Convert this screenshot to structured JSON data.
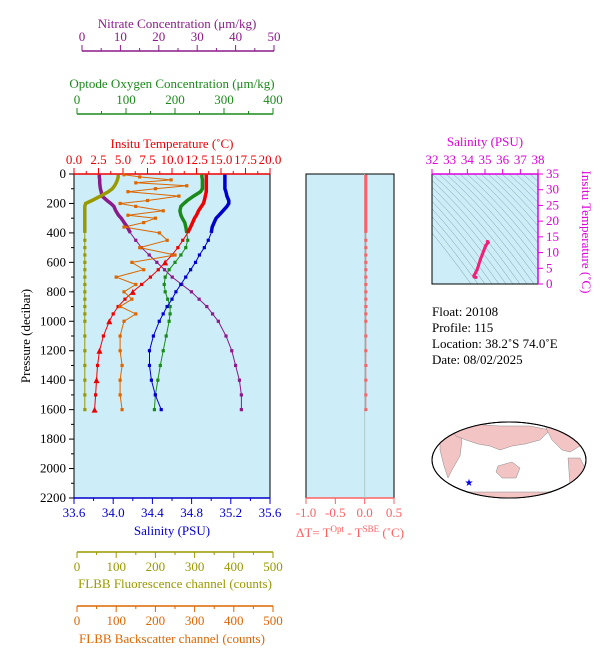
{
  "colors": {
    "nitrate": "#8b1a8b",
    "oxygen": "#1a8b1a",
    "temperature": "#ee0000",
    "salinity": "#0000cc",
    "fluorescence": "#999900",
    "backscatter": "#dd6600",
    "delta_t": "#ff6060",
    "ts_axis": "#dd00dd",
    "panel_bg": "#cdeef8",
    "land": "#f3c4c4",
    "ocean": "#ffffff"
  },
  "axes": {
    "nitrate": {
      "label": "Nitrate Concentration (μm/kg)",
      "ticks": [
        "0",
        "10",
        "20",
        "30",
        "40",
        "50"
      ]
    },
    "oxygen": {
      "label": "Optode Oxygen Concentration (μm/kg)",
      "ticks": [
        "0",
        "100",
        "200",
        "300",
        "400"
      ]
    },
    "temperature": {
      "label": "Insitu Temperature (˚C)",
      "ticks": [
        "0.0",
        "2.5",
        "5.0",
        "7.5",
        "10.0",
        "12.5",
        "15.0",
        "17.5",
        "20.0"
      ]
    },
    "pressure": {
      "label": "Pressure (decibar)",
      "ticks": [
        "0",
        "200",
        "400",
        "600",
        "800",
        "1000",
        "1200",
        "1400",
        "1600",
        "1800",
        "2000",
        "2200"
      ]
    },
    "salinity": {
      "label": "Salinity (PSU)",
      "ticks": [
        "33.6",
        "34.0",
        "34.4",
        "34.8",
        "35.2",
        "35.6"
      ]
    },
    "delta_t": {
      "label": "ΔT= T",
      "sup1": "Opt",
      "mid": " - T",
      "sup2": "SBE",
      "tail": " (˚C)",
      "ticks": [
        "-1.0",
        "-0.5",
        "0.0",
        "0.5"
      ]
    },
    "fluorescence": {
      "label": "FLBB Fluorescence channel (counts)",
      "ticks": [
        "0",
        "100",
        "200",
        "300",
        "400",
        "500"
      ]
    },
    "backscatter": {
      "label": "FLBB Backscatter channel (counts)",
      "ticks": [
        "0",
        "100",
        "200",
        "300",
        "400",
        "500"
      ]
    },
    "ts_salinity": {
      "label": "Salinity (PSU)",
      "ticks": [
        "32",
        "33",
        "34",
        "35",
        "36",
        "37",
        "38"
      ]
    },
    "ts_temperature": {
      "label": "Insitu Temperature (˚C)",
      "ticks": [
        "0",
        "5",
        "10",
        "15",
        "20",
        "25",
        "30",
        "35"
      ]
    }
  },
  "info": {
    "float": "Float:  20108",
    "profile": "Profile:  115",
    "location": "Location:  38.2˚S  74.0˚E",
    "date": "Date:  08/02/2025"
  },
  "chart_data": [
    {
      "type": "line",
      "panel": "profiles",
      "ylim": [
        2200,
        0
      ],
      "series": [
        {
          "name": "Nitrate Concentration",
          "x_axis": "nitrate",
          "xlim": [
            0,
            50
          ],
          "pressure": [
            5,
            20,
            40,
            60,
            80,
            100,
            120,
            150,
            180,
            200,
            220,
            250,
            280,
            300,
            330,
            360,
            400,
            450,
            500,
            550,
            600,
            650,
            700,
            750,
            800,
            850,
            900,
            950,
            1000,
            1100,
            1200,
            1300,
            1400,
            1500,
            1600
          ],
          "values": [
            4.5,
            4.5,
            4.6,
            4.6,
            4.7,
            4.8,
            5.0,
            5.2,
            6.5,
            7.5,
            8.3,
            8.8,
            9.5,
            10.2,
            11.0,
            11.8,
            12.6,
            14.0,
            15.5,
            17.5,
            19.5,
            21.5,
            23.5,
            26.0,
            28.5,
            30.5,
            32.5,
            34.0,
            35.5,
            37.5,
            39.0,
            40.0,
            41.0,
            41.5,
            41.5
          ]
        },
        {
          "name": "Optode Oxygen Concentration",
          "x_axis": "oxygen",
          "xlim": [
            0,
            400
          ],
          "pressure": [
            5,
            20,
            40,
            60,
            80,
            100,
            120,
            150,
            180,
            200,
            220,
            250,
            280,
            300,
            330,
            360,
            400,
            450,
            500,
            550,
            600,
            650,
            700,
            750,
            800,
            850,
            900,
            950,
            1000,
            1100,
            1200,
            1300,
            1400,
            1500,
            1600
          ],
          "values": [
            255,
            255,
            256,
            256,
            256,
            256,
            252,
            238,
            225,
            218,
            212,
            210,
            212,
            215,
            220,
            222,
            224,
            226,
            222,
            212,
            200,
            188,
            180,
            178,
            180,
            185,
            190,
            190,
            188,
            182,
            176,
            170,
            165,
            160,
            158
          ]
        },
        {
          "name": "Insitu Temperature",
          "x_axis": "temperature",
          "xlim": [
            0,
            20
          ],
          "pressure": [
            5,
            20,
            40,
            60,
            80,
            100,
            120,
            150,
            180,
            200,
            220,
            250,
            280,
            300,
            330,
            360,
            400,
            450,
            500,
            550,
            600,
            650,
            700,
            750,
            800,
            850,
            900,
            950,
            1000,
            1100,
            1200,
            1300,
            1400,
            1500,
            1600
          ],
          "values": [
            13.5,
            13.5,
            13.5,
            13.5,
            13.5,
            13.5,
            13.5,
            13.4,
            13.3,
            13.2,
            13.0,
            12.7,
            12.5,
            12.3,
            12.1,
            11.9,
            11.6,
            11.1,
            10.6,
            10.0,
            9.3,
            8.6,
            7.8,
            6.9,
            6.0,
            5.2,
            4.5,
            4.0,
            3.6,
            3.0,
            2.6,
            2.4,
            2.3,
            2.2,
            2.1
          ]
        },
        {
          "name": "Salinity",
          "x_axis": "salinity",
          "xlim": [
            33.6,
            35.6
          ],
          "pressure": [
            5,
            20,
            40,
            60,
            80,
            100,
            120,
            150,
            180,
            200,
            220,
            250,
            280,
            300,
            330,
            360,
            400,
            450,
            500,
            550,
            600,
            650,
            700,
            750,
            800,
            850,
            900,
            950,
            1000,
            1100,
            1200,
            1300,
            1400,
            1500,
            1600
          ],
          "values": [
            35.14,
            35.14,
            35.14,
            35.14,
            35.14,
            35.14,
            35.15,
            35.16,
            35.18,
            35.18,
            35.16,
            35.12,
            35.08,
            35.05,
            35.03,
            35.01,
            35.0,
            34.97,
            34.93,
            34.88,
            34.84,
            34.79,
            34.74,
            34.69,
            34.64,
            34.6,
            34.55,
            34.51,
            34.47,
            34.41,
            34.37,
            34.37,
            34.39,
            34.43,
            34.49
          ]
        },
        {
          "name": "FLBB Fluorescence channel",
          "x_axis": "fluorescence",
          "xlim": [
            0,
            500
          ],
          "pressure": [
            5,
            20,
            40,
            60,
            80,
            100,
            120,
            150,
            180,
            200,
            220,
            250,
            280,
            300,
            330,
            360,
            400,
            450,
            500,
            550,
            600,
            650,
            700,
            750,
            800,
            850,
            900,
            950,
            1000,
            1100,
            1200,
            1300,
            1400,
            1500,
            1600
          ],
          "values": [
            105,
            105,
            103,
            100,
            96,
            90,
            80,
            60,
            38,
            22,
            20,
            20,
            20,
            20,
            20,
            20,
            20,
            20,
            20,
            20,
            20,
            20,
            20,
            20,
            20,
            20,
            20,
            20,
            20,
            20,
            20,
            20,
            20,
            20,
            20
          ]
        },
        {
          "name": "FLBB Backscatter channel",
          "x_axis": "backscatter",
          "xlim": [
            0,
            500
          ],
          "pressure": [
            5,
            20,
            40,
            60,
            80,
            100,
            120,
            150,
            180,
            200,
            220,
            250,
            280,
            300,
            330,
            360,
            400,
            450,
            500,
            550,
            600,
            650,
            700,
            750,
            800,
            850,
            900,
            950,
            1000,
            1100,
            1200,
            1300,
            1400,
            1500,
            1600
          ],
          "values": [
            120,
            160,
            240,
            150,
            280,
            200,
            130,
            260,
            180,
            110,
            150,
            220,
            130,
            200,
            170,
            120,
            210,
            230,
            160,
            250,
            140,
            170,
            100,
            150,
            120,
            140,
            110,
            150,
            120,
            110,
            110,
            115,
            110,
            110,
            115
          ]
        }
      ]
    },
    {
      "type": "line",
      "panel": "delta_t",
      "xlim": [
        -1.0,
        0.5
      ],
      "ylim": [
        2200,
        0
      ],
      "series": [
        {
          "name": "ΔT",
          "pressure": [
            5,
            20,
            40,
            60,
            80,
            100,
            120,
            150,
            180,
            200,
            220,
            250,
            280,
            300,
            330,
            360,
            400,
            450,
            500,
            550,
            600,
            650,
            700,
            750,
            800,
            850,
            900,
            950,
            1000,
            1100,
            1200,
            1300,
            1400,
            1500,
            1600
          ],
          "values": [
            0.02,
            0.02,
            0.02,
            0.02,
            0.02,
            0.02,
            0.02,
            0.02,
            0.02,
            0.02,
            0.02,
            0.02,
            0.02,
            0.02,
            0.02,
            0.02,
            0.02,
            0.02,
            0.02,
            0.02,
            0.02,
            0.02,
            0.02,
            0.02,
            0.02,
            0.02,
            0.02,
            0.02,
            0.02,
            0.02,
            0.02,
            0.02,
            0.02,
            0.02,
            0.02
          ]
        }
      ]
    },
    {
      "type": "scatter",
      "panel": "ts_diagram",
      "xlim": [
        32,
        38
      ],
      "ylim": [
        0,
        35
      ],
      "series": [
        {
          "name": "T-S",
          "x": [
            35.14,
            35.14,
            35.16,
            35.18,
            35.05,
            35.0,
            34.93,
            34.84,
            34.74,
            34.64,
            34.55,
            34.47,
            34.37,
            34.39,
            34.49
          ],
          "y": [
            13.5,
            13.5,
            13.4,
            13.2,
            12.3,
            11.6,
            10.6,
            9.3,
            7.8,
            6.0,
            4.5,
            3.6,
            2.6,
            2.3,
            2.1
          ]
        }
      ]
    }
  ]
}
